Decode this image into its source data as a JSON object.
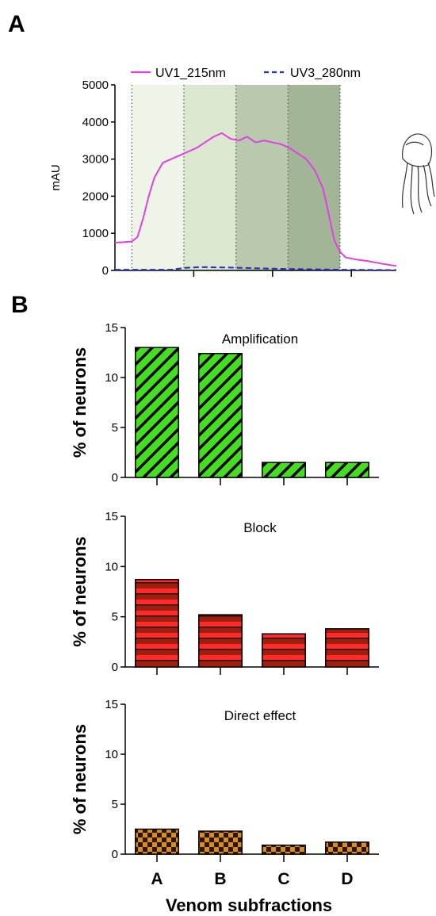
{
  "panels": {
    "a": "A",
    "b": "B"
  },
  "colors": {
    "uv1": "#e040e0",
    "uv3": "#2030c0",
    "band_a": "#eef4e8",
    "band_b": "#dbe8cf",
    "band_c": "#b9c9ad",
    "band_d": "#a3b597",
    "amplification": "#44dd22",
    "block_dark": "#9e1f0f",
    "block_light": "#ff2a2a",
    "direct_dark": "#2a1808",
    "direct_light": "#d98a2a"
  },
  "chart_data": [
    {
      "type": "line",
      "ylabel": "mAU",
      "ylim": [
        0,
        5000
      ],
      "yticks": [
        0,
        1000,
        2000,
        3000,
        4000,
        5000
      ],
      "xlim": [
        0,
        1
      ],
      "fractions": [
        "A",
        "B",
        "C",
        "D"
      ],
      "fraction_bounds": [
        0.06,
        0.245,
        0.43,
        0.615,
        0.8
      ],
      "legend": [
        "UV1_215nm",
        "UV3_280nm"
      ],
      "series": [
        {
          "name": "UV1_215nm",
          "style": "solid",
          "x": [
            0,
            0.03,
            0.06,
            0.08,
            0.1,
            0.12,
            0.14,
            0.17,
            0.2,
            0.23,
            0.26,
            0.29,
            0.32,
            0.35,
            0.38,
            0.41,
            0.44,
            0.47,
            0.5,
            0.53,
            0.56,
            0.59,
            0.62,
            0.65,
            0.68,
            0.71,
            0.74,
            0.76,
            0.78,
            0.8,
            0.82,
            0.86,
            0.9,
            0.95,
            1.0
          ],
          "y": [
            750,
            760,
            780,
            900,
            1400,
            2000,
            2500,
            2900,
            3000,
            3100,
            3200,
            3300,
            3450,
            3600,
            3700,
            3550,
            3500,
            3600,
            3450,
            3500,
            3450,
            3400,
            3300,
            3150,
            3000,
            2700,
            2200,
            1500,
            800,
            500,
            350,
            290,
            250,
            180,
            120
          ]
        },
        {
          "name": "UV3_280nm",
          "style": "dashed",
          "x": [
            0,
            0.1,
            0.2,
            0.25,
            0.3,
            0.4,
            0.5,
            0.6,
            0.7,
            0.8,
            0.9,
            1.0
          ],
          "y": [
            20,
            20,
            20,
            70,
            90,
            80,
            60,
            40,
            30,
            20,
            15,
            10
          ]
        }
      ]
    },
    {
      "type": "bar",
      "title": "Amplification",
      "ylabel": "% of neurons",
      "categories": [
        "A",
        "B",
        "C",
        "D"
      ],
      "values": [
        13.0,
        12.4,
        1.5,
        1.5
      ],
      "ylim": [
        0,
        15
      ],
      "yticks": [
        0,
        5,
        10,
        15
      ],
      "pattern": "diagonal-stripes"
    },
    {
      "type": "bar",
      "title": "Block",
      "ylabel": "% of neurons",
      "categories": [
        "A",
        "B",
        "C",
        "D"
      ],
      "values": [
        8.7,
        5.2,
        3.3,
        3.8
      ],
      "ylim": [
        0,
        15
      ],
      "yticks": [
        0,
        5,
        10,
        15
      ],
      "pattern": "horizontal-stripes"
    },
    {
      "type": "bar",
      "title": "Direct effect",
      "ylabel": "% of neurons",
      "xlabel": "Venom subfractions",
      "categories": [
        "A",
        "B",
        "C",
        "D"
      ],
      "values": [
        2.5,
        2.3,
        0.9,
        1.2
      ],
      "ylim": [
        0,
        15
      ],
      "yticks": [
        0,
        5,
        10,
        15
      ],
      "pattern": "checkerboard"
    }
  ]
}
